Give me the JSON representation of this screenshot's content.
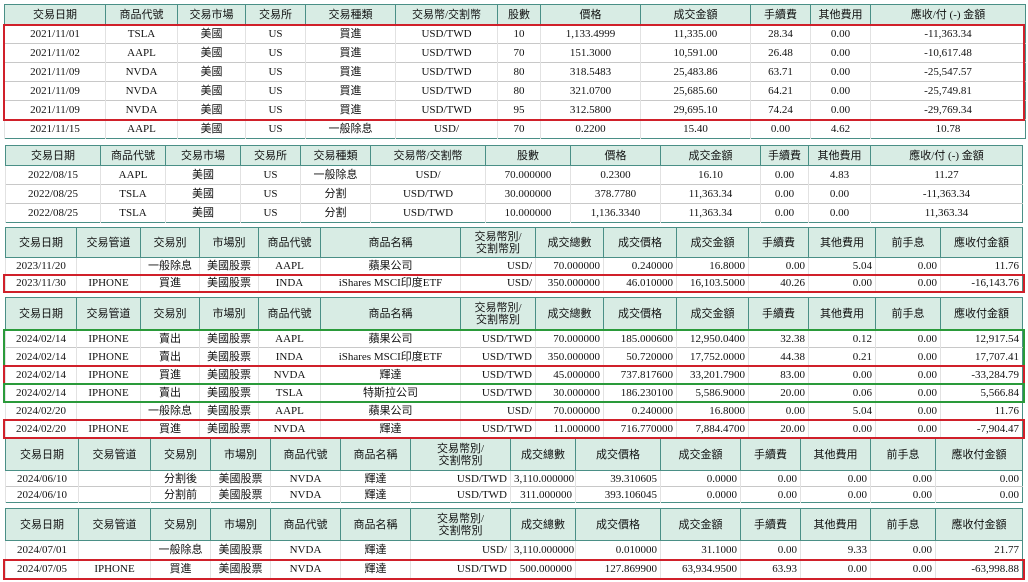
{
  "tables": [
    {
      "headers": [
        "交易日期",
        "商品代號",
        "交易市場",
        "交易所",
        "交易種類",
        "交易幣/交割幣",
        "股數",
        "價格",
        "成交金額",
        "手續費",
        "其他費用",
        "應收/付 (-) 金額"
      ],
      "rows": [
        [
          "2021/11/01",
          "TSLA",
          "美國",
          "US",
          "買進",
          "USD/TWD",
          "10",
          "1,133.4999",
          "11,335.00",
          "28.34",
          "0.00",
          "-11,363.34"
        ],
        [
          "2021/11/02",
          "AAPL",
          "美國",
          "US",
          "買進",
          "USD/TWD",
          "70",
          "151.3000",
          "10,591.00",
          "26.48",
          "0.00",
          "-10,617.48"
        ],
        [
          "2021/11/09",
          "NVDA",
          "美國",
          "US",
          "買進",
          "USD/TWD",
          "80",
          "318.5483",
          "25,483.86",
          "63.71",
          "0.00",
          "-25,547.57"
        ],
        [
          "2021/11/09",
          "NVDA",
          "美國",
          "US",
          "買進",
          "USD/TWD",
          "80",
          "321.0700",
          "25,685.60",
          "64.21",
          "0.00",
          "-25,749.81"
        ],
        [
          "2021/11/09",
          "NVDA",
          "美國",
          "US",
          "買進",
          "USD/TWD",
          "95",
          "312.5800",
          "29,695.10",
          "74.24",
          "0.00",
          "-29,769.34"
        ],
        [
          "2021/11/15",
          "AAPL",
          "美國",
          "US",
          "一般除息",
          "USD/",
          "70",
          "0.2200",
          "15.40",
          "0.00",
          "4.62",
          "10.78"
        ]
      ]
    },
    {
      "headers": [
        "交易日期",
        "商品代號",
        "交易市場",
        "交易所",
        "交易種類",
        "交易幣/交割幣",
        "股數",
        "價格",
        "成交金額",
        "手續費",
        "其他費用",
        "應收/付 (-) 金額"
      ],
      "rows": [
        [
          "2022/08/15",
          "AAPL",
          "美國",
          "US",
          "一般除息",
          "USD/",
          "70.000000",
          "0.2300",
          "16.10",
          "0.00",
          "4.83",
          "11.27"
        ],
        [
          "2022/08/25",
          "TSLA",
          "美國",
          "US",
          "分割",
          "USD/TWD",
          "30.000000",
          "378.7780",
          "11,363.34",
          "0.00",
          "0.00",
          "-11,363.34"
        ],
        [
          "2022/08/25",
          "TSLA",
          "美國",
          "US",
          "分割",
          "USD/TWD",
          "10.000000",
          "1,136.3340",
          "11,363.34",
          "0.00",
          "0.00",
          "11,363.34"
        ]
      ]
    },
    {
      "headers": [
        "交易日期",
        "交易管道",
        "交易別",
        "市場別",
        "商品代號",
        "商品名稱",
        "交易幣別/\n交割幣別",
        "成交總數",
        "成交價格",
        "成交金額",
        "手續費",
        "其他費用",
        "前手息",
        "應收付金額"
      ],
      "rows": [
        [
          "2023/11/20",
          null,
          "一般除息",
          "美國股票",
          "AAPL",
          "蘋果公司",
          "USD/",
          "70.000000",
          "0.240000",
          "16.8000",
          "0.00",
          "5.04",
          "0.00",
          "11.76"
        ],
        [
          "2023/11/30",
          "IPHONE",
          "買進",
          "美國股票",
          "INDA",
          "iShares MSCI印度ETF",
          "USD/",
          "350.000000",
          "46.010000",
          "16,103.5000",
          "40.26",
          "0.00",
          "0.00",
          "-16,143.76"
        ]
      ]
    },
    {
      "headers": [
        "交易日期",
        "交易管道",
        "交易別",
        "市場別",
        "商品代號",
        "商品名稱",
        "交易幣別/\n交割幣別",
        "成交總數",
        "成交價格",
        "成交金額",
        "手續費",
        "其他費用",
        "前手息",
        "應收付金額"
      ],
      "rows": [
        [
          "2024/02/14",
          "IPHONE",
          "賣出",
          "美國股票",
          "AAPL",
          "蘋果公司",
          "USD/TWD",
          "70.000000",
          "185.000600",
          "12,950.0400",
          "32.38",
          "0.12",
          "0.00",
          "12,917.54"
        ],
        [
          "2024/02/14",
          "IPHONE",
          "賣出",
          "美國股票",
          "INDA",
          "iShares MSCI印度ETF",
          "USD/TWD",
          "350.000000",
          "50.720000",
          "17,752.0000",
          "44.38",
          "0.21",
          "0.00",
          "17,707.41"
        ],
        [
          "2024/02/14",
          "IPHONE",
          "買進",
          "美國股票",
          "NVDA",
          "輝達",
          "USD/TWD",
          "45.000000",
          "737.817600",
          "33,201.7900",
          "83.00",
          "0.00",
          "0.00",
          "-33,284.79"
        ],
        [
          "2024/02/14",
          "IPHONE",
          "賣出",
          "美國股票",
          "TSLA",
          "特斯拉公司",
          "USD/TWD",
          "30.000000",
          "186.230100",
          "5,586.9000",
          "20.00",
          "0.06",
          "0.00",
          "5,566.84"
        ],
        [
          "2024/02/20",
          null,
          "一般除息",
          "美國股票",
          "AAPL",
          "蘋果公司",
          "USD/",
          "70.000000",
          "0.240000",
          "16.8000",
          "0.00",
          "5.04",
          "0.00",
          "11.76"
        ],
        [
          "2024/02/20",
          "IPHONE",
          "買進",
          "美國股票",
          "NVDA",
          "輝達",
          "USD/TWD",
          "11.000000",
          "716.770000",
          "7,884.4700",
          "20.00",
          "0.00",
          "0.00",
          "-7,904.47"
        ]
      ]
    },
    {
      "headers": [
        "交易日期",
        "交易管道",
        "交易別",
        "市場別",
        "商品代號",
        "商品名稱",
        "交易幣別/\n交割幣別",
        "成交總數",
        "成交價格",
        "成交金額",
        "手續費",
        "其他費用",
        "前手息",
        "應收付金額"
      ],
      "rows": [
        [
          "2024/06/10",
          null,
          "分割後",
          "美國股票",
          "NVDA",
          "輝達",
          "USD/TWD",
          "3,110.000000",
          "39.310605",
          "0.0000",
          "0.00",
          "0.00",
          "0.00",
          "0.00"
        ],
        [
          "2024/06/10",
          null,
          "分割前",
          "美國股票",
          "NVDA",
          "輝達",
          "USD/TWD",
          "311.000000",
          "393.106045",
          "0.0000",
          "0.00",
          "0.00",
          "0.00",
          "0.00"
        ]
      ]
    },
    {
      "headers": [
        "交易日期",
        "交易管道",
        "交易別",
        "市場別",
        "商品代號",
        "商品名稱",
        "交易幣別/\n交割幣別",
        "成交總數",
        "成交價格",
        "成交金額",
        "手續費",
        "其他費用",
        "前手息",
        "應收付金額"
      ],
      "rows": [
        [
          "2024/07/01",
          null,
          "一般除息",
          "美國股票",
          "NVDA",
          "輝達",
          "USD/",
          "3,110.000000",
          "0.010000",
          "31.1000",
          "0.00",
          "9.33",
          "0.00",
          "21.77"
        ],
        [
          "2024/07/05",
          "IPHONE",
          "買進",
          "美國股票",
          "NVDA",
          "輝達",
          "USD/TWD",
          "500.000000",
          "127.869900",
          "63,934.9500",
          "63.93",
          "0.00",
          "0.00",
          "-63,998.88"
        ]
      ]
    }
  ]
}
